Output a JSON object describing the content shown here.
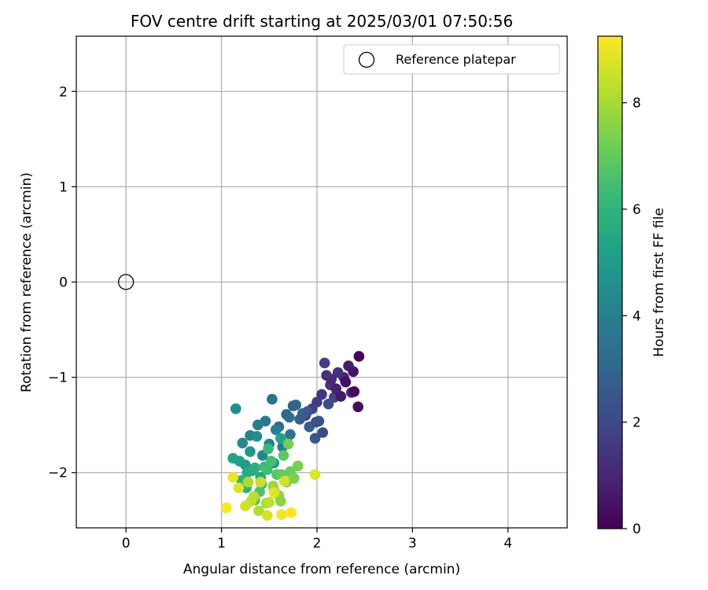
{
  "chart_data": {
    "type": "scatter",
    "title": "FOV centre drift starting at 2025/03/01 07:50:56",
    "xlabel": "Angular distance from reference (arcmin)",
    "ylabel": "Rotation from reference (arcmin)",
    "xlim": [
      -0.52,
      4.62
    ],
    "ylim": [
      -2.58,
      2.58
    ],
    "xticks": [
      0,
      1,
      2,
      3,
      4
    ],
    "yticks": [
      -2,
      -1,
      0,
      1,
      2
    ],
    "grid": true,
    "legend": {
      "position": "upper-right",
      "entries": [
        "Reference platepar"
      ]
    },
    "reference_point": {
      "x": 0,
      "y": 0
    },
    "colorbar": {
      "label": "Hours from first FF file",
      "colormap": "viridis",
      "range": [
        0,
        9.25
      ],
      "ticks": [
        0,
        2,
        4,
        6,
        8
      ]
    },
    "series": [
      {
        "c": [
          0.1,
          0.3,
          0.5,
          0.7,
          0.9,
          1.1,
          1.3,
          1.5,
          1.7,
          1.9,
          0.2,
          0.4,
          0.6,
          0.8,
          1.0,
          1.2,
          1.4,
          1.6,
          1.8,
          2.0,
          2.2,
          2.4,
          2.6,
          2.8,
          3.0,
          3.2,
          3.4,
          2.1,
          2.3,
          2.5,
          2.7,
          2.9,
          3.1,
          3.3,
          3.5,
          3.7,
          3.9,
          4.1,
          4.3,
          4.5,
          3.6,
          3.8,
          4.0,
          4.2,
          4.4,
          4.6,
          4.8,
          5.0,
          5.2,
          5.4,
          5.6,
          5.8,
          6.0,
          6.2,
          5.1,
          5.3,
          5.5,
          5.7,
          5.9,
          6.1,
          6.3,
          6.5,
          6.7,
          6.9,
          7.1,
          7.3,
          7.5,
          7.7,
          7.9,
          6.4,
          6.6,
          6.8,
          7.0,
          7.2,
          7.4,
          7.6,
          7.8,
          8.0,
          8.2,
          8.4,
          8.6,
          8.8,
          9.0,
          9.2,
          8.1,
          8.3,
          8.5,
          8.7,
          8.9,
          9.1,
          9.2,
          8.8,
          8.6,
          8.4
        ],
        "x": [
          2.44,
          2.43,
          2.38,
          2.33,
          2.28,
          2.36,
          2.22,
          2.14,
          2.08,
          2.18,
          2.39,
          2.3,
          2.25,
          2.2,
          2.15,
          2.1,
          2.05,
          2.0,
          1.95,
          1.88,
          2.12,
          2.02,
          1.98,
          1.92,
          1.85,
          1.78,
          1.71,
          2.06,
          1.99,
          1.9,
          1.82,
          1.75,
          1.68,
          1.6,
          1.53,
          1.46,
          1.38,
          1.3,
          1.22,
          1.15,
          1.72,
          1.64,
          1.57,
          1.5,
          1.43,
          1.37,
          1.3,
          1.25,
          1.19,
          1.12,
          1.27,
          1.35,
          1.42,
          1.49,
          1.55,
          1.62,
          1.41,
          1.33,
          1.26,
          1.21,
          1.45,
          1.52,
          1.58,
          1.65,
          1.72,
          1.8,
          1.68,
          1.6,
          1.54,
          1.48,
          1.4,
          1.35,
          1.63,
          1.7,
          1.76,
          1.62,
          1.55,
          1.47,
          1.39,
          1.31,
          1.25,
          1.18,
          1.12,
          1.05,
          1.28,
          1.34,
          1.41,
          1.48,
          1.55,
          1.63,
          1.73,
          1.98,
          1.66,
          1.5
        ],
        "y": [
          -0.78,
          -1.31,
          -0.94,
          -0.88,
          -1.0,
          -1.16,
          -0.95,
          -1.08,
          -0.85,
          -1.21,
          -1.15,
          -1.05,
          -1.2,
          -1.12,
          -1.02,
          -0.98,
          -1.18,
          -1.26,
          -1.33,
          -1.4,
          -1.28,
          -1.46,
          -1.64,
          -1.52,
          -1.38,
          -1.29,
          -1.42,
          -1.58,
          -1.47,
          -1.36,
          -1.44,
          -1.3,
          -1.39,
          -1.52,
          -1.23,
          -1.46,
          -1.5,
          -1.61,
          -1.69,
          -1.33,
          -1.6,
          -1.73,
          -1.55,
          -1.7,
          -1.82,
          -1.62,
          -1.78,
          -1.92,
          -1.88,
          -1.85,
          -2.0,
          -1.95,
          -2.12,
          -1.75,
          -1.9,
          -1.64,
          -2.05,
          -1.98,
          -2.16,
          -2.08,
          -1.94,
          -1.88,
          -2.02,
          -1.82,
          -1.99,
          -1.93,
          -2.1,
          -2.24,
          -2.14,
          -1.97,
          -2.2,
          -2.29,
          -2.02,
          -1.7,
          -2.06,
          -2.3,
          -2.18,
          -2.32,
          -2.4,
          -2.3,
          -2.35,
          -2.16,
          -2.05,
          -2.37,
          -2.1,
          -2.25,
          -2.1,
          -2.45,
          -2.21,
          -2.44,
          -2.42,
          -2.02,
          -2.09,
          -2.31
        ]
      }
    ]
  }
}
